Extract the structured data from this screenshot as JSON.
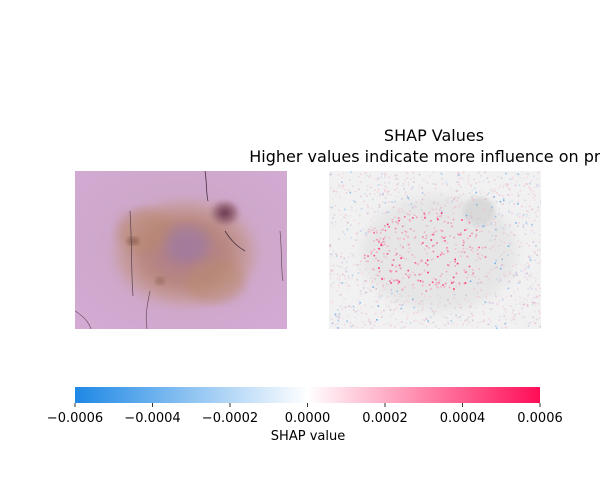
{
  "chart_data": {
    "type": "heatmap",
    "title": "SHAP Values",
    "subtitle": "Higher values indicate more influence on prec",
    "panels": [
      {
        "name": "input image",
        "content": "dermoscopy image of a pigmented skin lesion"
      },
      {
        "name": "shap overlay",
        "content": "SHAP attribution heatmap over grayscale image"
      }
    ],
    "colorbar": {
      "label": "SHAP value",
      "range": [
        -0.0006,
        0.0006
      ],
      "ticks": [
        -0.0006,
        -0.0004,
        -0.0002,
        0.0,
        0.0002,
        0.0004,
        0.0006
      ],
      "tick_labels": [
        "−0.0006",
        "−0.0004",
        "−0.0002",
        "0.0000",
        "0.0002",
        "0.0004",
        "0.0006"
      ],
      "colormap": [
        "#1e88e5",
        "#ffffff",
        "#ff0d57"
      ]
    }
  }
}
